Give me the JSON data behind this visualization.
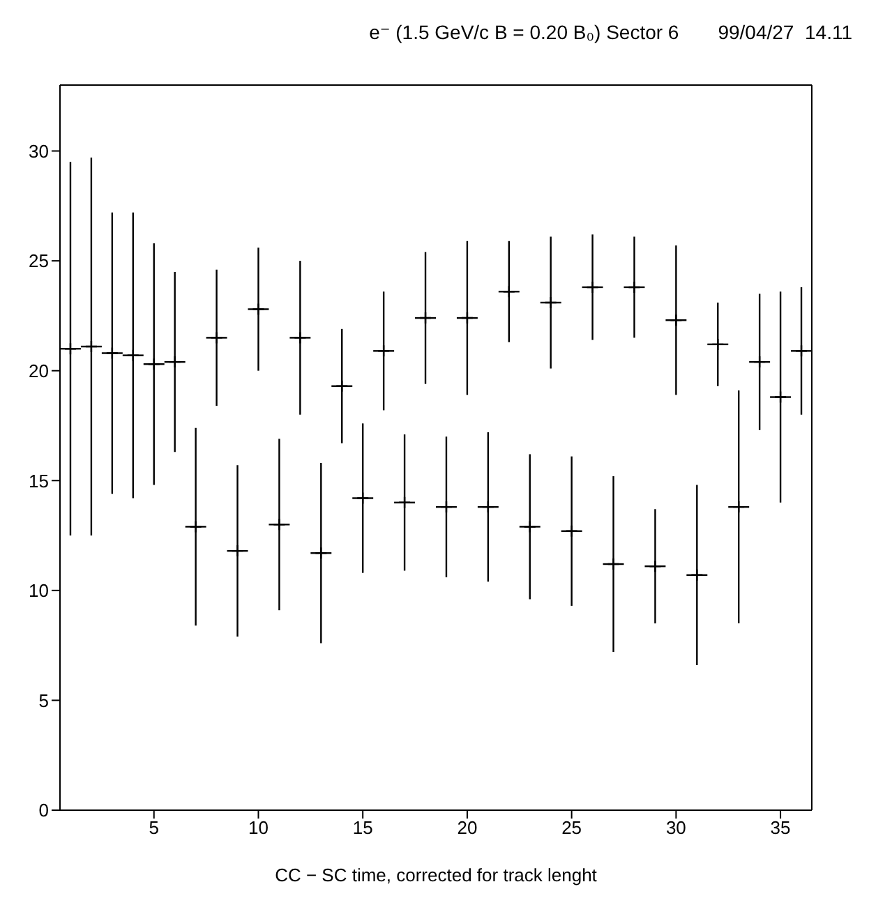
{
  "chart_data": {
    "type": "scatter",
    "title": "e⁻ (1.5 GeV/c B = 0.20 B₀) Sector 6",
    "subtitle": "99/04/27  14.11",
    "xlabel": "CC − SC time, corrected for track lenght",
    "x": [
      1,
      2,
      3,
      4,
      5,
      6,
      7,
      8,
      9,
      10,
      11,
      12,
      13,
      14,
      15,
      16,
      17,
      18,
      19,
      20,
      21,
      22,
      23,
      24,
      25,
      26,
      27,
      28,
      29,
      30,
      31,
      32,
      33,
      34,
      35,
      36
    ],
    "series": [
      {
        "color": "#000000",
        "values": [
          21.0,
          21.1,
          20.8,
          20.7,
          20.3,
          20.4,
          12.9,
          21.5,
          11.8,
          22.8,
          13.0,
          21.5,
          11.7,
          19.3,
          14.2,
          20.9,
          14.0,
          22.4,
          13.8,
          22.4,
          13.8,
          23.6,
          12.9,
          23.1,
          12.7,
          23.8,
          11.2,
          23.8,
          11.1,
          22.3,
          10.7,
          21.2,
          13.8,
          20.4,
          18.8,
          20.9
        ],
        "errors": [
          8.5,
          8.6,
          6.4,
          6.5,
          5.5,
          4.1,
          4.5,
          3.1,
          3.9,
          2.8,
          3.9,
          3.5,
          4.1,
          2.6,
          3.4,
          2.7,
          3.1,
          3.0,
          3.2,
          3.5,
          3.4,
          2.3,
          3.3,
          3.0,
          3.4,
          2.4,
          4.0,
          2.3,
          2.6,
          3.4,
          4.1,
          1.9,
          5.3,
          3.1,
          4.8,
          2.9
        ],
        "xerrors": [
          0.5,
          0.5,
          0.5,
          0.5,
          0.5,
          0.5,
          0.5,
          0.5,
          0.5,
          0.5,
          0.5,
          0.5,
          0.5,
          0.5,
          0.5,
          0.5,
          0.5,
          0.5,
          0.5,
          0.5,
          0.5,
          0.5,
          0.5,
          0.5,
          0.5,
          0.5,
          0.5,
          0.5,
          0.5,
          0.5,
          0.5,
          0.5,
          0.5,
          0.5,
          0.5,
          0.5
        ]
      }
    ],
    "xlim": [
      0.5,
      36.5
    ],
    "xticks": [
      5,
      10,
      15,
      20,
      25,
      30,
      35
    ],
    "ylim": [
      0,
      33
    ],
    "yticks": [
      0,
      5,
      10,
      15,
      20,
      25,
      30
    ],
    "grid": false,
    "legend": false,
    "marker": "cross"
  }
}
